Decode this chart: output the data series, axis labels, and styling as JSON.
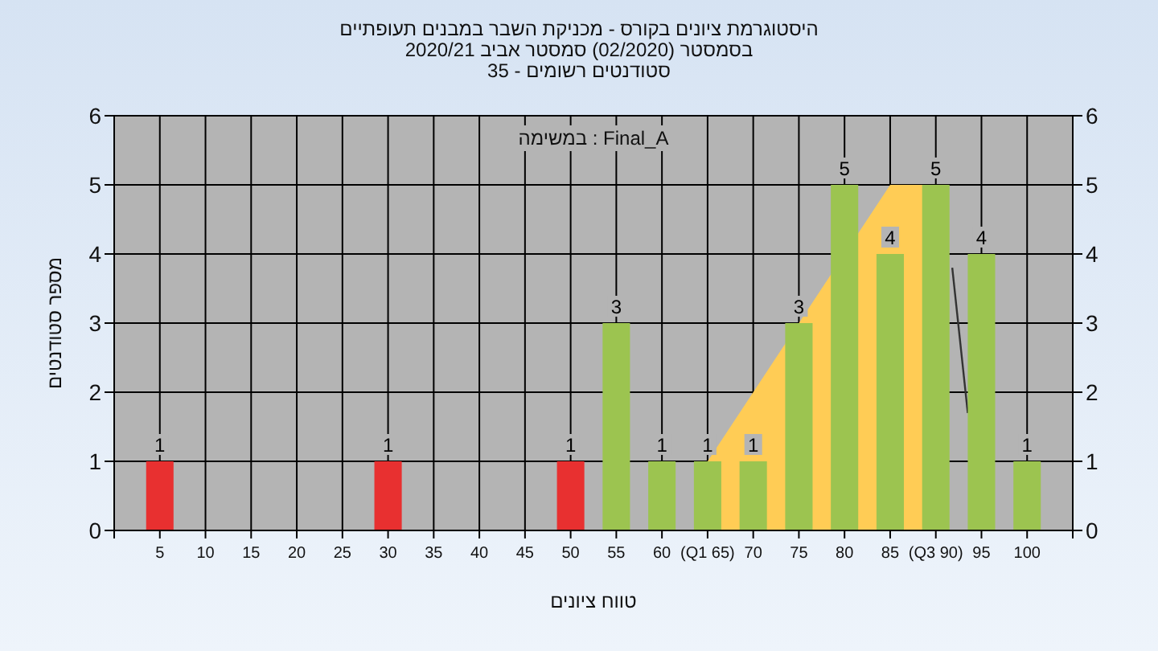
{
  "chart_data": {
    "type": "bar",
    "title": "היסטוגרמת ציונים בקורס - מכניקת השבר במבנים תעופתיים",
    "subtitle": "בסמסטר (02/2020) סמסטר אביב 2020/21\nסטודנטים רשומים - 35",
    "xlabel": "טווח ציונים",
    "ylabel": "מספר סטודנטים",
    "annotations": [
      "במשימה : Final_A"
    ],
    "xlim": [
      0,
      105
    ],
    "ylim": [
      0,
      6
    ],
    "y2lim": [
      0,
      6
    ],
    "yticks": [
      0,
      1,
      2,
      3,
      4,
      5,
      6
    ],
    "y2ticks": [
      0,
      1,
      2,
      3,
      4,
      5,
      6
    ],
    "xticks": [
      {
        "value": 0,
        "label": null
      },
      5,
      10,
      15,
      20,
      25,
      30,
      35,
      40,
      45,
      50,
      55,
      60,
      {
        "value": 65,
        "label": "(Q1 65)"
      },
      70,
      75,
      80,
      85,
      {
        "value": 90,
        "label": "(Q3 90)"
      },
      95,
      100,
      {
        "value": 105,
        "label": null
      }
    ],
    "grid": true,
    "series": [
      {
        "type": "area",
        "color": "#ffcc55",
        "x": [
          65,
          85,
          90
        ],
        "values": [
          1,
          5,
          5
        ]
      },
      {
        "type": "line",
        "color": "#333333",
        "x": [
          91.8,
          93.5
        ],
        "values": [
          3.8,
          1.7
        ]
      },
      {
        "x": [
          5,
          10,
          15,
          20,
          25,
          30,
          35,
          40,
          45,
          50,
          55,
          60,
          65,
          70,
          75,
          80,
          85,
          90,
          95,
          100
        ],
        "values": [
          1,
          0,
          0,
          0,
          0,
          1,
          0,
          0,
          0,
          1,
          3,
          1,
          1,
          1,
          3,
          5,
          4,
          5,
          4,
          1
        ],
        "colors": [
          "#e83030",
          "#e83030",
          "#e83030",
          "#e83030",
          "#e83030",
          "#e83030",
          "#e83030",
          "#e83030",
          "#e83030",
          "#e83030",
          "#9cc450",
          "#9cc450",
          "#9cc450",
          "#9cc450",
          "#9cc450",
          "#9cc450",
          "#9cc450",
          "#9cc450",
          "#9cc450",
          "#9cc450"
        ],
        "value_labels": [
          "1",
          null,
          null,
          null,
          null,
          "1",
          null,
          null,
          null,
          "1",
          "3",
          "1",
          "1",
          "1",
          "3",
          "5",
          "4",
          "5",
          "4",
          "1"
        ]
      }
    ]
  }
}
